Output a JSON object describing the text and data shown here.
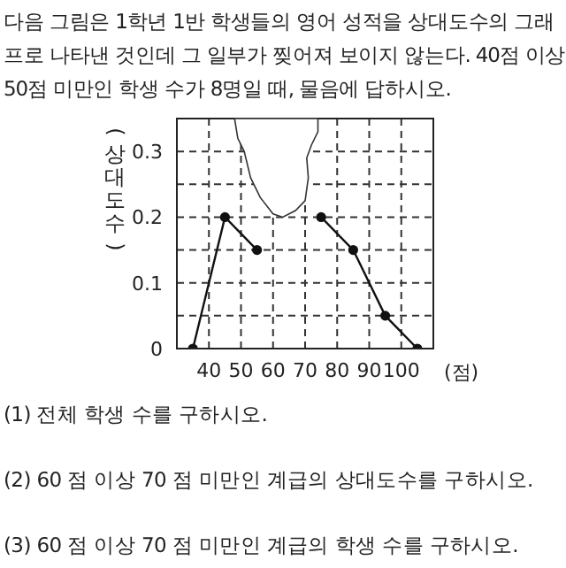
{
  "chart_data": {
    "type": "line",
    "title": "다음 그림은 1학년 1반 학생들의 영어 성적을 상대도수의 그래프로 나타낸 것인데 그 일부가 찢어져 보이지 않는다. 40점 이상 50점 미만인 학생 수가 8명일 때, 물음에 답하시오.",
    "ylabel": "(상대도수)",
    "xlabel": "(점)",
    "x": [
      35,
      45,
      55,
      65,
      75,
      85,
      95,
      105
    ],
    "series": [
      {
        "color": "#111111",
        "values": [
          0,
          0.2,
          0.15,
          null,
          0.2,
          0.15,
          0.05,
          0
        ]
      }
    ],
    "xlim": [
      30,
      110
    ],
    "xticks": [
      40,
      50,
      60,
      70,
      80,
      90,
      100
    ],
    "ylim": [
      0,
      0.35
    ],
    "yticks": [
      0,
      {
        "value": 0.05,
        "label": null
      },
      0.1,
      {
        "value": 0.15,
        "label": null
      },
      0.2,
      {
        "value": 0.25,
        "label": null
      },
      0.3
    ],
    "grid": true,
    "marker": "circle",
    "line_style": "solid",
    "annotations": [
      "(1) 전체 학생 수를 구하시오.",
      "(2) 60 점 이상 70 점 미만인 계급의 상대도수를 구하시오.",
      "(3) 60 점 이상 70 점 미만인 계급의 학생 수를 구하시오."
    ]
  }
}
